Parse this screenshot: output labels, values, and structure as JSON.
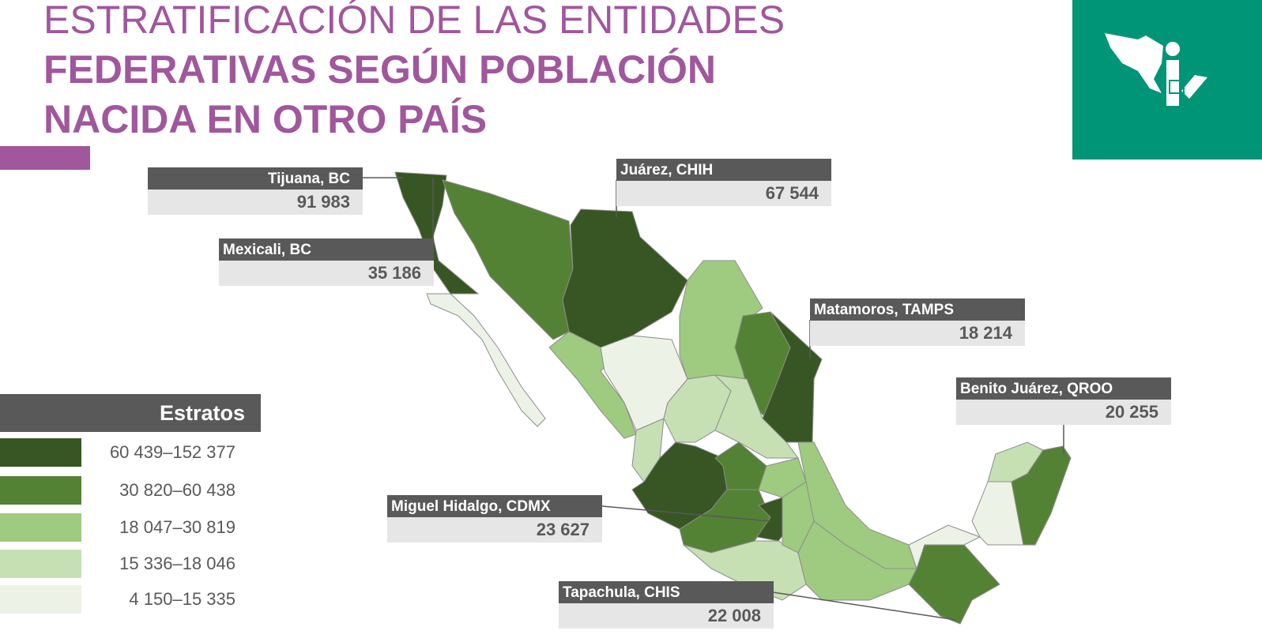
{
  "header": {
    "title_lines": [
      "ESTRATIFICACIÓN DE LAS ENTIDADES",
      "FEDERATIVAS SEGÚN POBLACIÓN",
      "NACIDA EN OTRO PAÍS"
    ]
  },
  "callouts": [
    {
      "name": "Tijuana, BC",
      "value": "91 983"
    },
    {
      "name": "Mexicali, BC",
      "value": "35 186"
    },
    {
      "name": "Juárez, CHIH",
      "value": "67 544"
    },
    {
      "name": "Matamoros, TAMPS",
      "value": "18 214"
    },
    {
      "name": "Benito Juárez, QROO",
      "value": "20 255"
    },
    {
      "name": "Miguel Hidalgo, CDMX",
      "value": "23 627"
    },
    {
      "name": "Tapachula, CHIS",
      "value": "22 008"
    }
  ],
  "legend": {
    "title": "Estratos",
    "items": [
      {
        "label": "60 439–152 377",
        "color": "#375623"
      },
      {
        "label": "30 820–60 438",
        "color": "#548235"
      },
      {
        "label": "18 047–30 819",
        "color": "#9fcb80"
      },
      {
        "label": "15 336–18 046",
        "color": "#c6e0b4"
      },
      {
        "label": "4 150–15 335",
        "color": "#ecf3e6"
      }
    ]
  }
}
